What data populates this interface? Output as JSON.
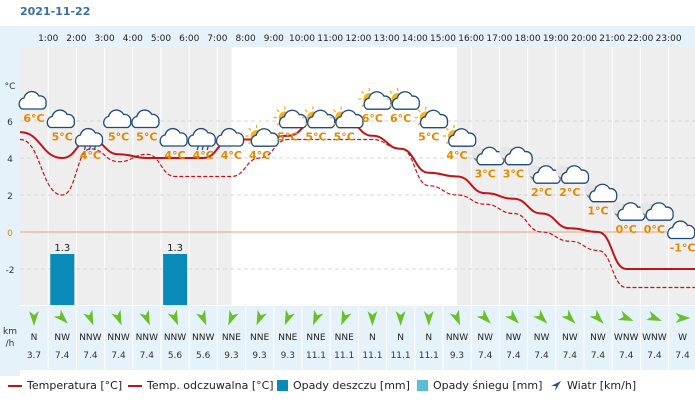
{
  "date": "2021-11-22",
  "chart_data": {
    "type": "line",
    "hours": [
      "1:00",
      "2:00",
      "3:00",
      "4:00",
      "5:00",
      "6:00",
      "7:00",
      "8:00",
      "9:00",
      "10:00",
      "11:00",
      "12:00",
      "13:00",
      "14:00",
      "15:00",
      "16:00",
      "17:00",
      "18:00",
      "19:00",
      "20:00",
      "21:00",
      "22:00",
      "23:00"
    ],
    "y_ticks": [
      "°C",
      "6",
      "4",
      "2",
      "0",
      "-2"
    ],
    "ylim": [
      -4,
      8
    ],
    "temperature": [
      5.4,
      4.0,
      5.0,
      4.2,
      4.0,
      4.0,
      4.0,
      5.0,
      5.0,
      5.2,
      6.0,
      6.1,
      5.2,
      4.5,
      3.2,
      3.0,
      2.1,
      1.8,
      1.0,
      0.2,
      0.0,
      -2.0,
      -2.0
    ],
    "feels_like": [
      5.0,
      2.0,
      4.5,
      3.8,
      4.2,
      3.0,
      3.0,
      3.0,
      4.0,
      5.0,
      5.0,
      5.0,
      5.0,
      4.5,
      2.5,
      2.0,
      1.5,
      1.0,
      0.0,
      -0.5,
      -1.0,
      -3.0,
      -3.0
    ],
    "temp_labels": [
      "6°C",
      "5°C",
      "4°C",
      "5°C",
      "5°C",
      "4°C",
      "4°C",
      "4°C",
      "4°C",
      "5°C",
      "5°C",
      "5°C",
      "6°C",
      "6°C",
      "5°C",
      "4°C",
      "3°C",
      "3°C",
      "2°C",
      "2°C",
      "1°C",
      "0°C",
      "0°C",
      "-1°C"
    ],
    "temp_label_values": [
      6,
      5,
      4,
      5,
      5,
      4,
      4,
      4,
      4,
      5,
      5,
      5,
      6,
      6,
      5,
      4,
      3,
      3,
      2,
      2,
      1,
      0,
      0,
      -1
    ],
    "weather_icons": [
      "cloud-icon",
      "cloud-icon",
      "rain-cloud-icon",
      "cloud-icon",
      "cloud-icon",
      "cloud-icon",
      "rain-cloud-icon",
      "cloud-icon",
      "sun-cloud-icon",
      "sun-cloud-icon",
      "sun-cloud-icon",
      "sun-cloud-icon",
      "sun-cloud-icon",
      "sun-cloud-icon",
      "sun-cloud-icon",
      "sun-cloud-icon",
      "moon-cloud-icon",
      "moon-cloud-icon",
      "moon-cloud-icon",
      "moon-cloud-icon",
      "moon-cloud-icon",
      "moon-cloud-icon",
      "moon-cloud-icon",
      "cloud-icon"
    ],
    "precipitation": [
      {
        "hour": "2:00",
        "value": 1.3,
        "label": "1.3"
      },
      {
        "hour": "6:00",
        "value": 1.3,
        "label": "1.3"
      }
    ],
    "wind_dir": [
      "N",
      "NW",
      "NNW",
      "NNW",
      "NNW",
      "NNW",
      "NNW",
      "NNE",
      "NNE",
      "NNE",
      "NNE",
      "NNE",
      "N",
      "N",
      "N",
      "NNW",
      "NW",
      "NW",
      "NW",
      "NW",
      "NW",
      "WNW",
      "WNW",
      "W"
    ],
    "wind_speed": [
      "3.7",
      "7.4",
      "7.4",
      "7.4",
      "7.4",
      "5.6",
      "5.6",
      "9.3",
      "9.3",
      "9.3",
      "11.1",
      "11.1",
      "11.1",
      "11.1",
      "11.1",
      "9.3",
      "7.4",
      "7.4",
      "7.4",
      "7.4",
      "7.4",
      "7.4",
      "7.4",
      "7.4"
    ],
    "wind_unit": "km/h",
    "night_shading": {
      "until_hour": 7.5,
      "from_hour": 15.5
    },
    "colors": {
      "temperature": "#c0141b",
      "rain": "#0a8ab8",
      "snow": "#5bbcd6",
      "sun": "#f2b51a",
      "label": "#e08a00",
      "night": "#eeeeee",
      "panel": "#e6f2fa"
    }
  },
  "legend": {
    "temperature": "Temperatura [°C]",
    "feels_like": "Temp. odczuwalna [°C]",
    "rain": "Opady deszczu [mm]",
    "snow": "Opady śniegu [mm]",
    "wind": "Wiatr [km/h]"
  }
}
